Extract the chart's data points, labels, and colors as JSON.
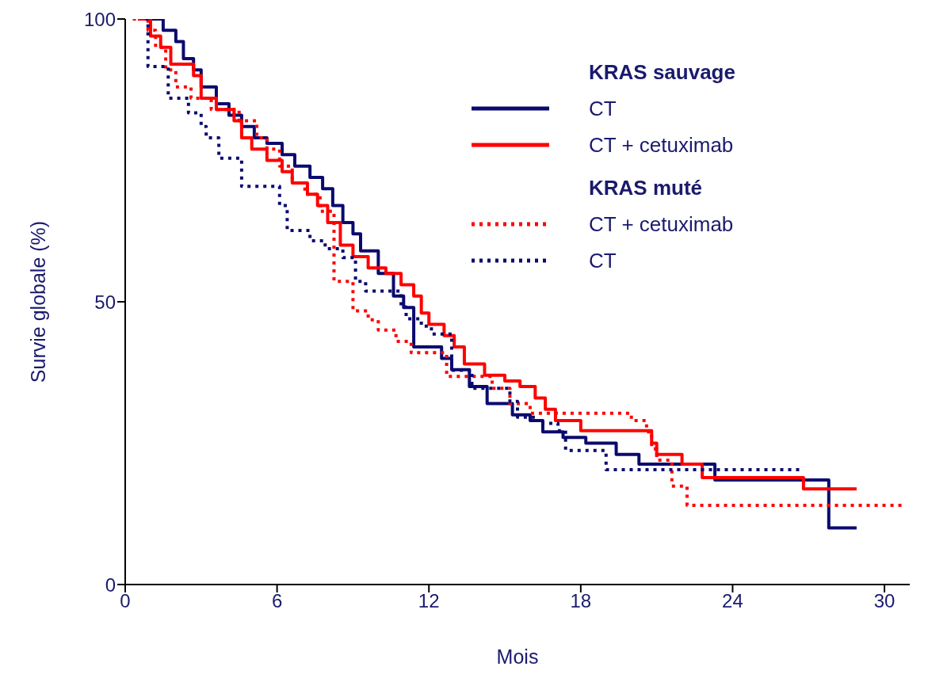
{
  "chart_data": {
    "type": "step",
    "xlabel": "Mois",
    "ylabel": "Survie globale (%)",
    "xlim": [
      0,
      31
    ],
    "ylim": [
      0,
      100
    ],
    "xticks": [
      0,
      6,
      12,
      18,
      24,
      30
    ],
    "yticks": [
      0,
      50,
      100
    ],
    "legend": "top right",
    "annotations": [
      "KRAS sauvage",
      "KRAS muté"
    ],
    "series": [
      {
        "name": "CT",
        "color": "#0a0a6e",
        "line_style": "solid",
        "x": [
          0.8,
          1.5,
          2.0,
          2.3,
          2.7,
          3.0,
          3.6,
          4.1,
          4.6,
          5.1,
          5.6,
          6.2,
          6.7,
          7.3,
          7.8,
          8.2,
          8.6,
          9.0,
          9.3,
          10.0,
          10.6,
          11.0,
          11.4,
          12.5,
          12.9,
          13.6,
          14.3,
          15.3,
          16.0,
          16.5,
          17.3,
          18.2,
          19.4,
          20.3,
          23.3,
          27.8,
          28.9
        ],
        "values": [
          100,
          98,
          96,
          93,
          91,
          88,
          85,
          83,
          81,
          79,
          78,
          76,
          74,
          72,
          70,
          67,
          64,
          62,
          59,
          55,
          51,
          49,
          42,
          40,
          38,
          35,
          32,
          30,
          29,
          27,
          26,
          25,
          23,
          21.3,
          18.5,
          10,
          10
        ]
      },
      {
        "name": "CT + cetuximab",
        "color": "#ff0000",
        "line_style": "solid",
        "x": [
          0.5,
          1.0,
          1.4,
          1.8,
          2.7,
          3.0,
          3.6,
          4.3,
          4.6,
          5.0,
          5.6,
          6.2,
          6.6,
          7.2,
          7.6,
          8.0,
          8.5,
          9.0,
          9.6,
          10.3,
          10.9,
          11.4,
          11.7,
          12.0,
          12.6,
          13.0,
          13.4,
          14.2,
          15.0,
          15.6,
          16.2,
          16.6,
          17.0,
          18.0,
          20.8,
          21.0,
          22.0,
          22.8,
          26.8,
          28.9
        ],
        "values": [
          100,
          97,
          95,
          92,
          90,
          86,
          84,
          82,
          79,
          77,
          75,
          73,
          71,
          69,
          67,
          64,
          60,
          58,
          56,
          55,
          53,
          51,
          48,
          46,
          44,
          42,
          39,
          37,
          36,
          35,
          33,
          31,
          29,
          27.2,
          25,
          23,
          21.3,
          18.9,
          16.9,
          16.9
        ]
      },
      {
        "name": "CT + cetuximab",
        "color": "#ff0000",
        "line_style": "dotted",
        "x": [
          0.3,
          0.9,
          1.2,
          1.6,
          2.0,
          2.6,
          3.4,
          4.5,
          5.2,
          5.6,
          6.1,
          6.6,
          7.1,
          7.7,
          8.25,
          9.0,
          9.6,
          10.0,
          10.7,
          11.3,
          12.7,
          14.5,
          15.2,
          16.0,
          20.0,
          20.6,
          20.8,
          21.0,
          21.6,
          22.2,
          30.7
        ],
        "values": [
          100,
          98,
          95,
          91,
          88,
          86,
          84,
          82,
          79,
          77,
          74,
          71,
          69,
          66,
          53.6,
          48.4,
          46.8,
          45,
          43,
          41,
          36.8,
          34.7,
          32,
          30.3,
          29,
          27,
          24,
          22,
          17.4,
          14,
          14
        ]
      },
      {
        "name": "CT",
        "color": "#0a0a6e",
        "line_style": "dotted",
        "x": [
          0.8,
          0.9,
          1.7,
          2.5,
          3.0,
          3.2,
          3.7,
          4.6,
          6.1,
          6.4,
          7.3,
          7.9,
          8.6,
          9.1,
          9.5,
          10.9,
          11.1,
          11.7,
          12.1,
          12.9,
          13.7,
          15.2,
          15.5,
          16.3,
          17.1,
          17.4,
          19.0,
          26.8
        ],
        "values": [
          100,
          91.6,
          86,
          83.4,
          81,
          79,
          75.4,
          70.4,
          67,
          62.6,
          60.8,
          59.4,
          57.8,
          53.6,
          51.9,
          49.1,
          47,
          45.7,
          44.3,
          37.9,
          34.7,
          32.4,
          29.6,
          28.5,
          27.2,
          23.7,
          20.3,
          20.3
        ]
      }
    ]
  }
}
